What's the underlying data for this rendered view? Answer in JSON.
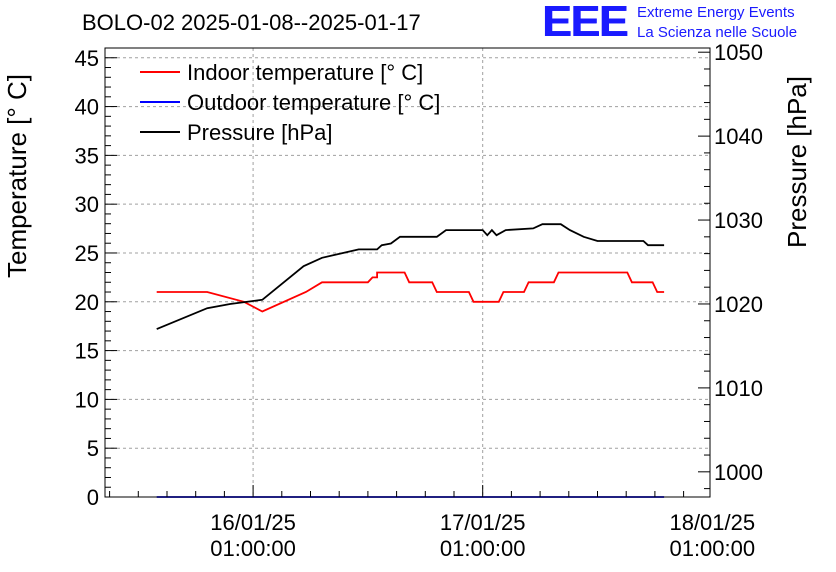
{
  "title": "BOLO-02 2025-01-08--2025-01-17",
  "logo": {
    "mark": "EEE",
    "line1": "Extreme Energy Events",
    "line2": "La Scienza nelle Scuole"
  },
  "chart_data": {
    "type": "line",
    "title": "BOLO-02 2025-01-08--2025-01-17",
    "xlabel": "",
    "ylabel": "Temperature [° C]",
    "y2label": "Pressure [hPa]",
    "ylim": [
      0,
      46
    ],
    "y2lim": [
      997,
      1050.5
    ],
    "xlim": [
      -0.645,
      1.99
    ],
    "yticks": [
      0,
      5,
      10,
      15,
      20,
      25,
      30,
      35,
      40,
      45
    ],
    "y2ticks": [
      1000,
      1010,
      1020,
      1030,
      1040,
      1050
    ],
    "xticks": [
      {
        "value": 0,
        "line1": "16/01/25",
        "line2": "01:00:00"
      },
      {
        "value": 1,
        "line1": "17/01/25",
        "line2": "01:00:00"
      },
      {
        "value": 2,
        "line1": "18/01/25",
        "line2": "01:00:00"
      }
    ],
    "grid": true,
    "legend_position": "top-left",
    "series": [
      {
        "name": "Indoor temperature [° C]",
        "color": "#ff0000",
        "axis": "left",
        "x": [
          -0.42,
          -0.2,
          -0.04,
          0.04,
          0.23,
          0.3,
          0.5,
          0.52,
          0.53,
          0.54,
          0.54,
          0.55,
          0.66,
          0.68,
          0.78,
          0.8,
          0.94,
          0.96,
          1.07,
          1.09,
          1.18,
          1.2,
          1.31,
          1.33,
          1.63,
          1.65,
          1.74,
          1.76,
          1.79
        ],
        "values": [
          21,
          21,
          20,
          19,
          21,
          22,
          22,
          22.5,
          22.5,
          22.5,
          23,
          23,
          23,
          22,
          22,
          21,
          21,
          20,
          20,
          21,
          21,
          22,
          22,
          23,
          23,
          22,
          22,
          21,
          21
        ]
      },
      {
        "name": "Outdoor temperature [° C]",
        "color": "#0000ff",
        "axis": "left",
        "x": [
          -0.42,
          1.79
        ],
        "values": [
          0,
          0
        ]
      },
      {
        "name": "Pressure [hPa]",
        "color": "#000000",
        "axis": "right",
        "x": [
          -0.42,
          -0.2,
          -0.1,
          0.04,
          0.22,
          0.3,
          0.46,
          0.54,
          0.56,
          0.6,
          0.64,
          0.66,
          0.8,
          0.84,
          1.0,
          1.02,
          1.04,
          1.06,
          1.1,
          1.22,
          1.26,
          1.34,
          1.38,
          1.44,
          1.5,
          1.56,
          1.7,
          1.72,
          1.79
        ],
        "values": [
          1017,
          1019.5,
          1020,
          1020.5,
          1024.5,
          1025.5,
          1026.5,
          1026.5,
          1027,
          1027.2,
          1028,
          1028,
          1028,
          1028.8,
          1028.8,
          1028.2,
          1028.8,
          1028.2,
          1028.8,
          1029,
          1029.5,
          1029.5,
          1028.8,
          1028,
          1027.5,
          1027.5,
          1027.5,
          1027,
          1027
        ]
      }
    ]
  }
}
